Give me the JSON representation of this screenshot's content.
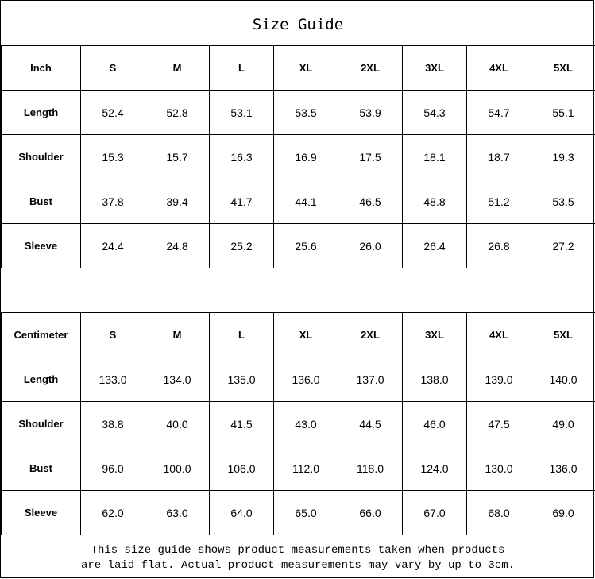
{
  "title": "Size Guide",
  "sizes": [
    "S",
    "M",
    "L",
    "XL",
    "2XL",
    "3XL",
    "4XL",
    "5XL"
  ],
  "inch": {
    "unit_label": "Inch",
    "rows": [
      {
        "label": "Length",
        "values": [
          "52.4",
          "52.8",
          "53.1",
          "53.5",
          "53.9",
          "54.3",
          "54.7",
          "55.1"
        ]
      },
      {
        "label": "Shoulder",
        "values": [
          "15.3",
          "15.7",
          "16.3",
          "16.9",
          "17.5",
          "18.1",
          "18.7",
          "19.3"
        ]
      },
      {
        "label": "Bust",
        "values": [
          "37.8",
          "39.4",
          "41.7",
          "44.1",
          "46.5",
          "48.8",
          "51.2",
          "53.5"
        ]
      },
      {
        "label": "Sleeve",
        "values": [
          "24.4",
          "24.8",
          "25.2",
          "25.6",
          "26.0",
          "26.4",
          "26.8",
          "27.2"
        ]
      }
    ]
  },
  "cm": {
    "unit_label": "Centimeter",
    "rows": [
      {
        "label": "Length",
        "values": [
          "133.0",
          "134.0",
          "135.0",
          "136.0",
          "137.0",
          "138.0",
          "139.0",
          "140.0"
        ]
      },
      {
        "label": "Shoulder",
        "values": [
          "38.8",
          "40.0",
          "41.5",
          "43.0",
          "44.5",
          "46.0",
          "47.5",
          "49.0"
        ]
      },
      {
        "label": "Bust",
        "values": [
          "96.0",
          "100.0",
          "106.0",
          "112.0",
          "118.0",
          "124.0",
          "130.0",
          "136.0"
        ]
      },
      {
        "label": "Sleeve",
        "values": [
          "62.0",
          "63.0",
          "64.0",
          "65.0",
          "66.0",
          "67.0",
          "68.0",
          "69.0"
        ]
      }
    ]
  },
  "note": {
    "line1": "This size guide shows product measurements taken when products",
    "line2": "are laid flat. Actual product measurements may vary by up to 3cm."
  }
}
